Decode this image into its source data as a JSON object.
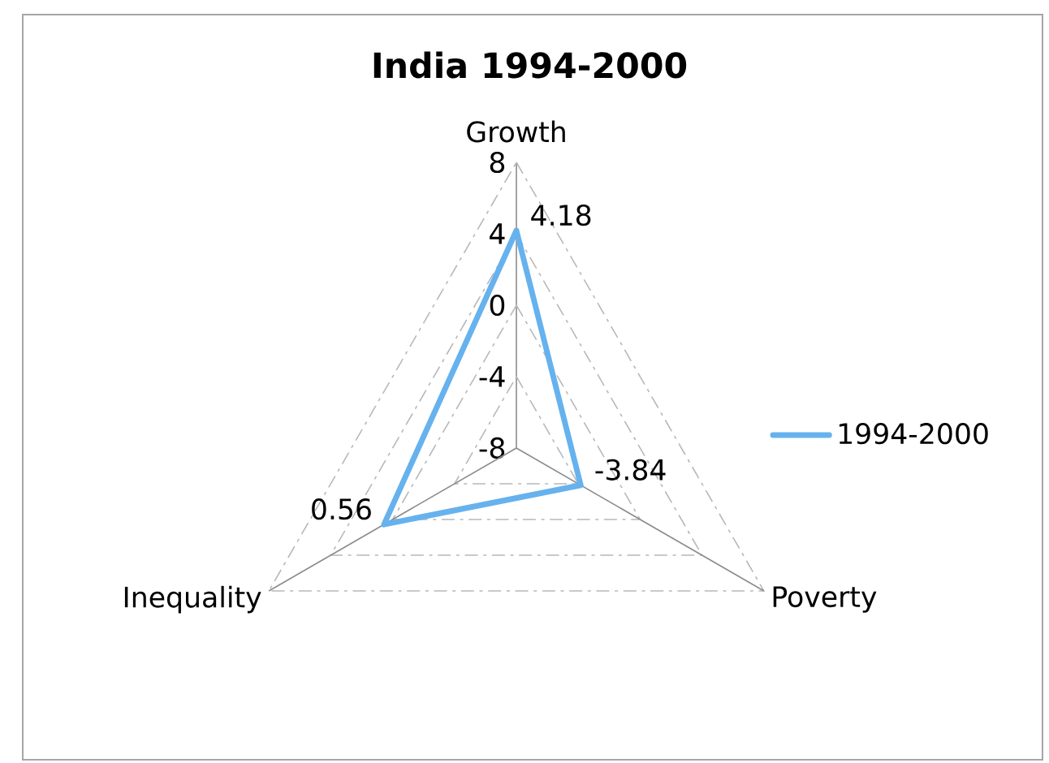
{
  "chart_data": {
    "type": "radar",
    "title": "India 1994-2000",
    "categories": [
      "Growth",
      "Poverty",
      "Inequality"
    ],
    "series": [
      {
        "name": "1994-2000",
        "color": "#66b2ee",
        "values": [
          4.18,
          -3.84,
          0.56
        ]
      }
    ],
    "ylim": [
      -8,
      8
    ],
    "yticks": [
      -8,
      -4,
      0,
      4,
      8
    ],
    "grid": true,
    "legend": "right",
    "data_labels": true
  }
}
